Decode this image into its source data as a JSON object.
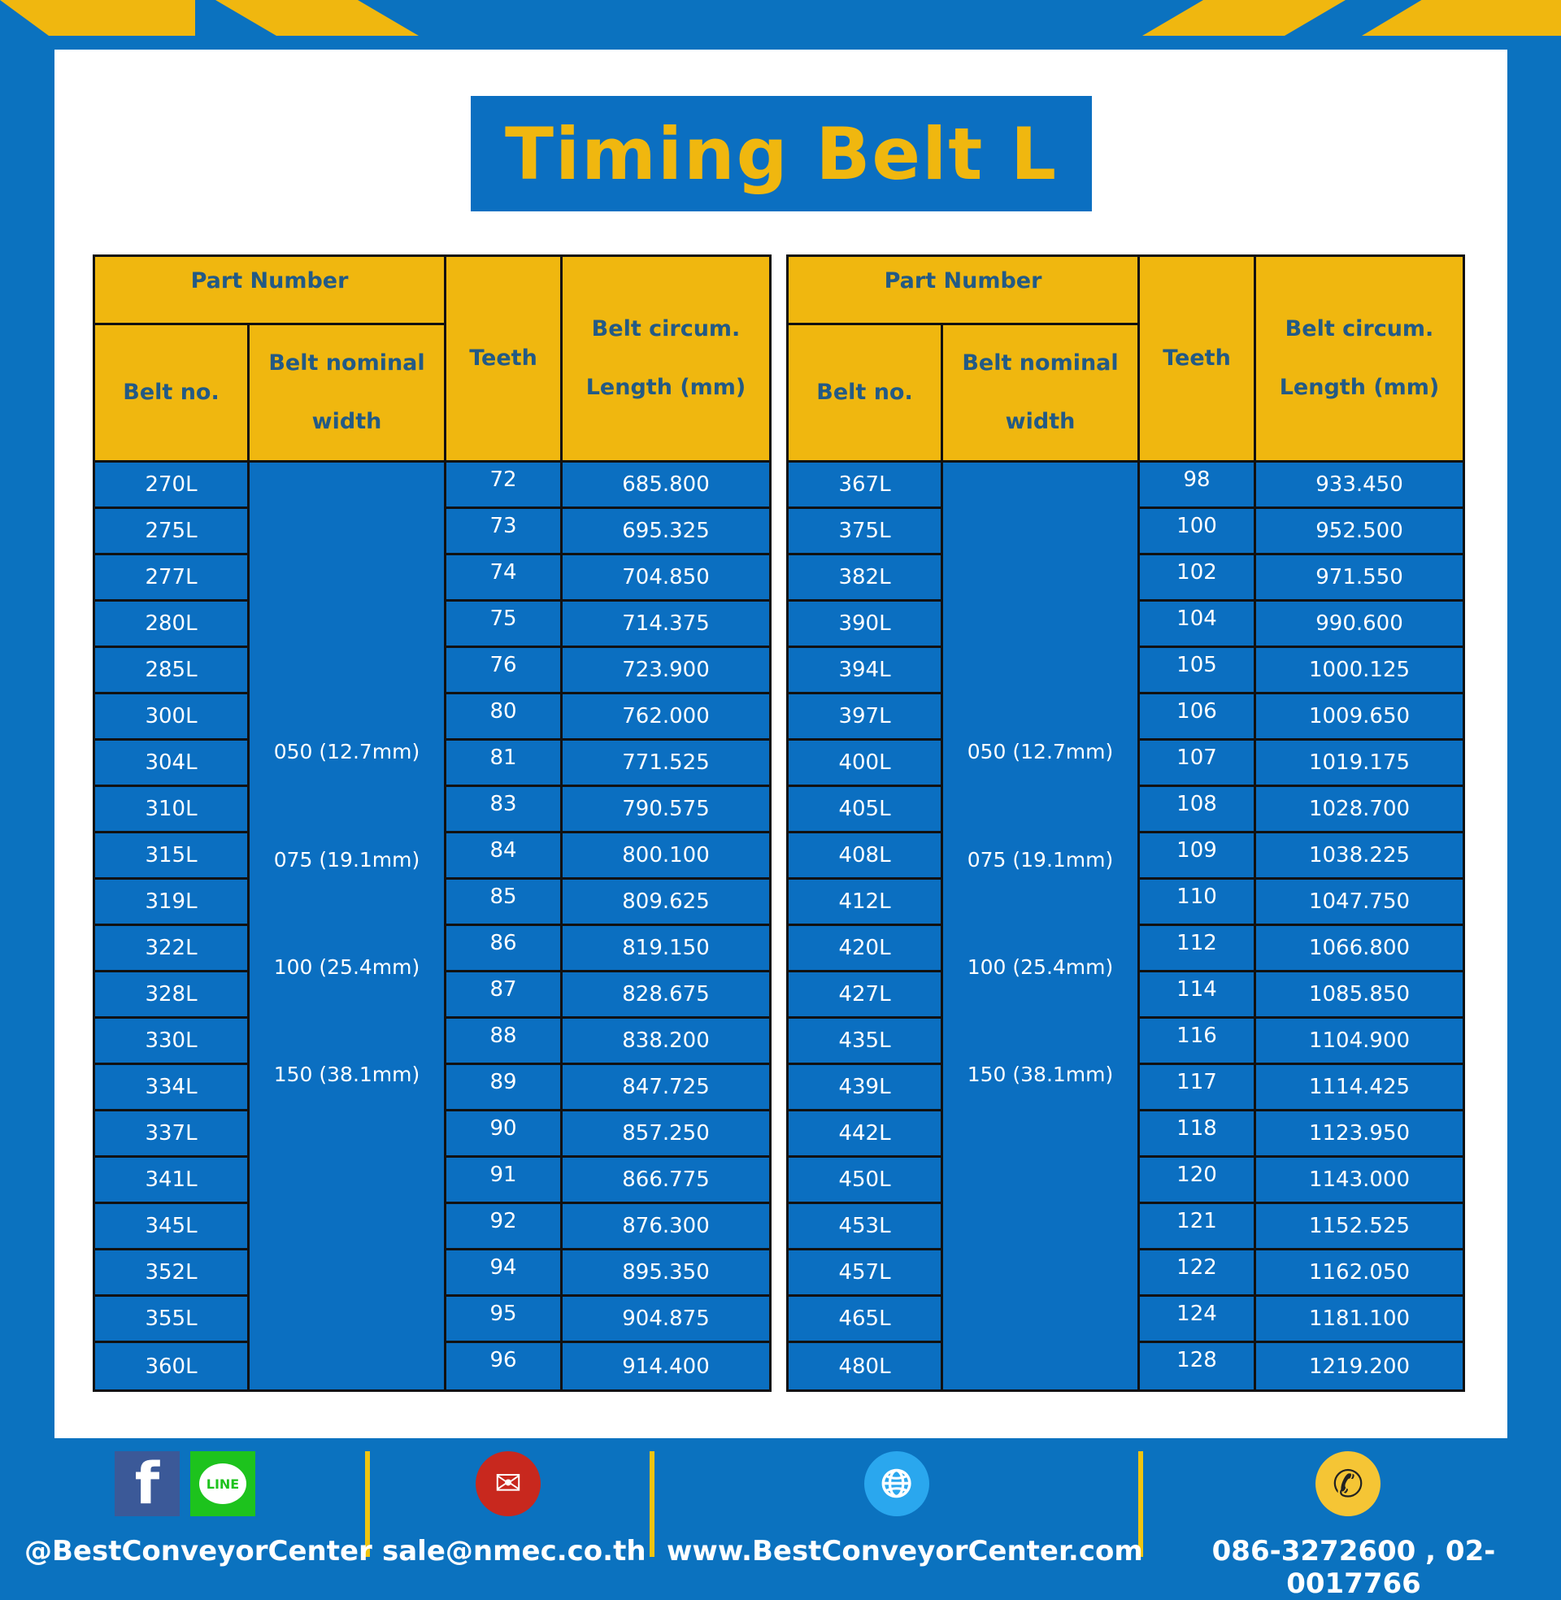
{
  "title": "Timing Belt L",
  "header": {
    "part_number": "Part Number",
    "belt_no": "Belt no.",
    "belt_nominal_width": "Belt nominal width",
    "teeth": "Teeth",
    "length": "Belt circum. Length (mm)"
  },
  "widths": [
    "050 (12.7mm)",
    "075 (19.1mm)",
    "100 (25.4mm)",
    "150 (38.1mm)"
  ],
  "left_table": [
    [
      "270L",
      72,
      "685.800"
    ],
    [
      "275L",
      73,
      "695.325"
    ],
    [
      "277L",
      74,
      "704.850"
    ],
    [
      "280L",
      75,
      "714.375"
    ],
    [
      "285L",
      76,
      "723.900"
    ],
    [
      "300L",
      80,
      "762.000"
    ],
    [
      "304L",
      81,
      "771.525"
    ],
    [
      "310L",
      83,
      "790.575"
    ],
    [
      "315L",
      84,
      "800.100"
    ],
    [
      "319L",
      85,
      "809.625"
    ],
    [
      "322L",
      86,
      "819.150"
    ],
    [
      "328L",
      87,
      "828.675"
    ],
    [
      "330L",
      88,
      "838.200"
    ],
    [
      "334L",
      89,
      "847.725"
    ],
    [
      "337L",
      90,
      "857.250"
    ],
    [
      "341L",
      91,
      "866.775"
    ],
    [
      "345L",
      92,
      "876.300"
    ],
    [
      "352L",
      94,
      "895.350"
    ],
    [
      "355L",
      95,
      "904.875"
    ],
    [
      "360L",
      96,
      "914.400"
    ]
  ],
  "right_table": [
    [
      "367L",
      98,
      "933.450"
    ],
    [
      "375L",
      100,
      "952.500"
    ],
    [
      "382L",
      102,
      "971.550"
    ],
    [
      "390L",
      104,
      "990.600"
    ],
    [
      "394L",
      105,
      "1000.125"
    ],
    [
      "397L",
      106,
      "1009.650"
    ],
    [
      "400L",
      107,
      "1019.175"
    ],
    [
      "405L",
      108,
      "1028.700"
    ],
    [
      "408L",
      109,
      "1038.225"
    ],
    [
      "412L",
      110,
      "1047.750"
    ],
    [
      "420L",
      112,
      "1066.800"
    ],
    [
      "427L",
      114,
      "1085.850"
    ],
    [
      "435L",
      116,
      "1104.900"
    ],
    [
      "439L",
      117,
      "1114.425"
    ],
    [
      "442L",
      118,
      "1123.950"
    ],
    [
      "450L",
      120,
      "1143.000"
    ],
    [
      "453L",
      121,
      "1152.525"
    ],
    [
      "457L",
      122,
      "1162.050"
    ],
    [
      "465L",
      124,
      "1181.100"
    ],
    [
      "480L",
      128,
      "1219.200"
    ]
  ],
  "footer": {
    "social": "@BestConveyorCenter",
    "email": "sale@nmec.co.th",
    "website": "www.BestConveyorCenter.com",
    "phone": "086-3272600 , 02-0017766",
    "line_label": "LINE"
  },
  "colors": {
    "blue": "#0b6fc1",
    "yellow": "#f0b70f",
    "header_text": "#235a85"
  }
}
